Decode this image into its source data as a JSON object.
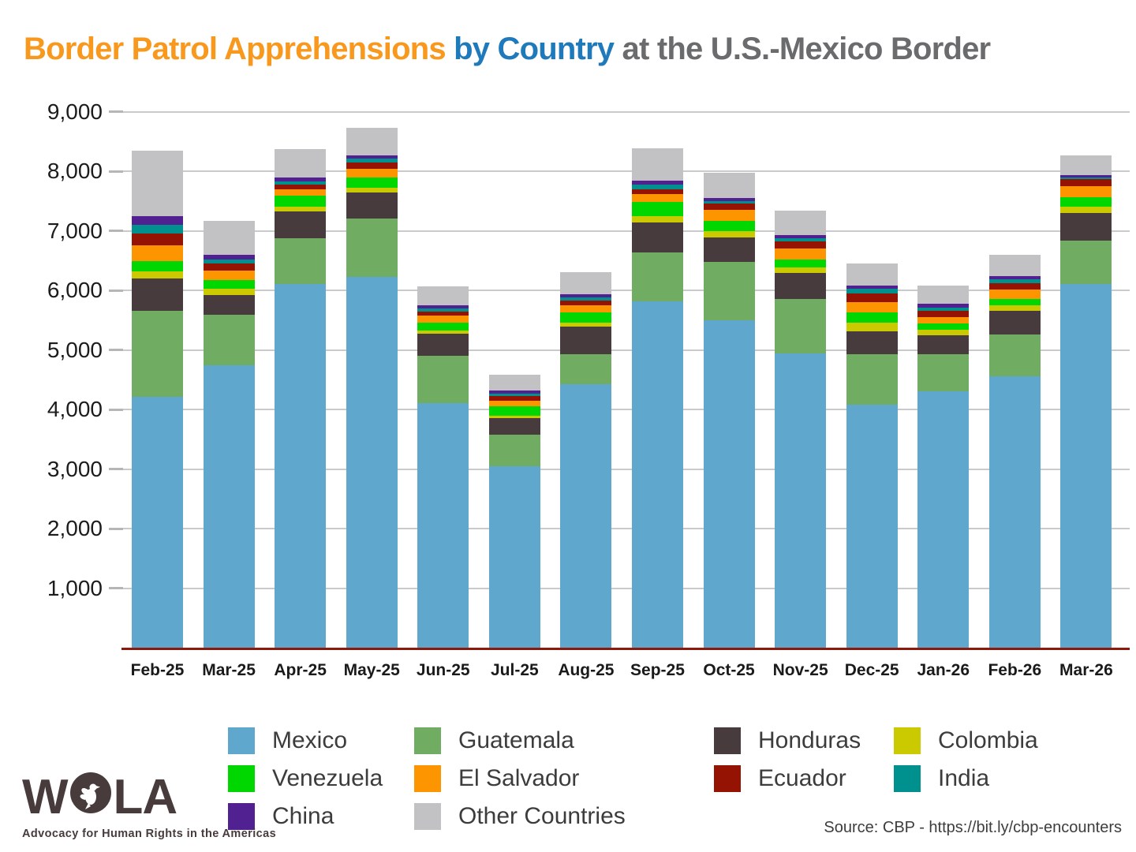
{
  "title": {
    "part1": "Border Patrol Apprehensions ",
    "part2": "by Country ",
    "part3": "at the U.S.-Mexico Border"
  },
  "source": "Source: CBP - https://bit.ly/cbp-encounters",
  "wola": {
    "name_left": "W",
    "name_right": "LA",
    "tagline": "Advocacy for Human Rights in the Americas"
  },
  "legend": {
    "columns": [
      [
        "Mexico",
        "Venezuela",
        "China"
      ],
      [
        "Guatemala",
        "El Salvador",
        "Other Countries"
      ],
      [
        "Honduras",
        "Ecuador"
      ],
      [
        "Colombia",
        "India"
      ]
    ]
  },
  "chart_data": {
    "type": "bar",
    "stacked": true,
    "title": "Border Patrol Apprehensions by Country at the U.S.-Mexico Border",
    "xlabel": "",
    "ylabel": "",
    "ylim": [
      0,
      9000
    ],
    "grid": "horizontal",
    "legend_position": "bottom",
    "axis_line_color": "#8c1a0c",
    "categories": [
      "Feb-25",
      "Mar-25",
      "Apr-25",
      "May-25",
      "Jun-25",
      "Jul-25",
      "Aug-25",
      "Sep-25",
      "Oct-25",
      "Nov-25",
      "Dec-25",
      "Jan-26",
      "Feb-26",
      "Mar-26"
    ],
    "y_ticks": [
      {
        "label": "1,000",
        "value": 1000
      },
      {
        "label": "2,000",
        "value": 2000
      },
      {
        "label": "3,000",
        "value": 3000
      },
      {
        "label": "4,000",
        "value": 4000
      },
      {
        "label": "5,000",
        "value": 5000
      },
      {
        "label": "6,000",
        "value": 6000
      },
      {
        "label": "7,000",
        "value": 7000
      },
      {
        "label": "8,000",
        "value": 8000
      },
      {
        "label": "9,000",
        "value": 9000
      }
    ],
    "series": [
      {
        "name": "Mexico",
        "color": "#5fa7cc",
        "values": [
          4210,
          4740,
          6110,
          6230,
          4100,
          3040,
          4420,
          5810,
          5490,
          4940,
          4080,
          4300,
          4550,
          6100
        ]
      },
      {
        "name": "Guatemala",
        "color": "#70ac61",
        "values": [
          1450,
          850,
          770,
          970,
          800,
          530,
          500,
          830,
          980,
          920,
          850,
          620,
          710,
          730
        ]
      },
      {
        "name": "Honduras",
        "color": "#473b3d",
        "values": [
          540,
          330,
          450,
          440,
          370,
          290,
          470,
          500,
          410,
          430,
          380,
          320,
          400,
          470
        ]
      },
      {
        "name": "Colombia",
        "color": "#cbc900",
        "values": [
          120,
          100,
          70,
          80,
          60,
          40,
          70,
          100,
          110,
          100,
          150,
          100,
          90,
          100
        ]
      },
      {
        "name": "Venezuela",
        "color": "#00d600",
        "values": [
          170,
          150,
          190,
          180,
          130,
          150,
          170,
          240,
          180,
          130,
          170,
          100,
          110,
          160
        ]
      },
      {
        "name": "El Salvador",
        "color": "#fd9501",
        "values": [
          270,
          160,
          110,
          140,
          110,
          100,
          120,
          130,
          180,
          180,
          170,
          110,
          150,
          190
        ]
      },
      {
        "name": "Ecuador",
        "color": "#951302",
        "values": [
          190,
          120,
          80,
          110,
          70,
          70,
          80,
          90,
          110,
          120,
          140,
          100,
          110,
          120
        ]
      },
      {
        "name": "India",
        "color": "#00918e",
        "values": [
          150,
          60,
          50,
          60,
          50,
          50,
          50,
          80,
          30,
          60,
          80,
          60,
          60,
          30
        ]
      },
      {
        "name": "China",
        "color": "#512091",
        "values": [
          150,
          90,
          70,
          50,
          60,
          50,
          60,
          60,
          60,
          50,
          60,
          60,
          60,
          40
        ]
      },
      {
        "name": "Other Countries",
        "color": "#c2c2c5",
        "values": [
          1100,
          570,
          470,
          470,
          320,
          260,
          370,
          540,
          430,
          410,
          370,
          310,
          350,
          330
        ]
      }
    ]
  }
}
